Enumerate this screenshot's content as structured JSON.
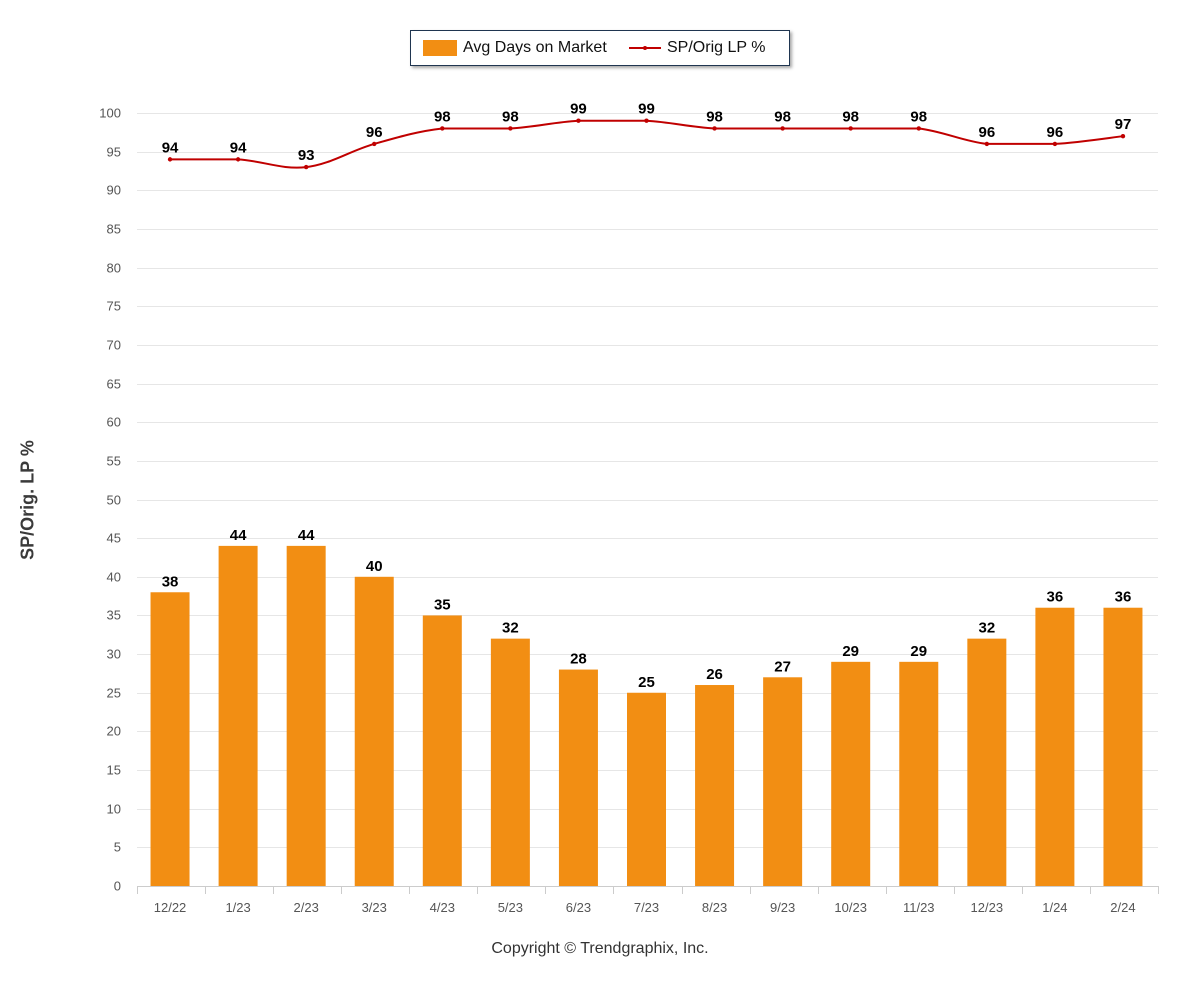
{
  "chart_data": {
    "type": "bar",
    "categories": [
      "12/22",
      "1/23",
      "2/23",
      "3/23",
      "4/23",
      "5/23",
      "6/23",
      "7/23",
      "8/23",
      "9/23",
      "10/23",
      "11/23",
      "12/23",
      "1/24",
      "2/24"
    ],
    "series": [
      {
        "name": "Avg Days on Market",
        "kind": "bar",
        "color": "#f28e13",
        "values": [
          38,
          44,
          44,
          40,
          35,
          32,
          28,
          25,
          26,
          27,
          29,
          29,
          32,
          36,
          36
        ]
      },
      {
        "name": "SP/Orig LP %",
        "kind": "line",
        "color": "#c00000",
        "values": [
          94,
          94,
          93,
          96,
          98,
          98,
          99,
          99,
          98,
          98,
          98,
          98,
          96,
          96,
          97
        ]
      }
    ],
    "ylabel": "SP/Orig. LP %",
    "ylim": [
      0,
      100
    ],
    "yticks": [
      0,
      5,
      10,
      15,
      20,
      25,
      30,
      35,
      40,
      45,
      50,
      55,
      60,
      65,
      70,
      75,
      80,
      85,
      90,
      95,
      100
    ],
    "grid": true,
    "legend_position": "top-center"
  },
  "legend": {
    "bar_label": "Avg Days on Market",
    "line_label": "SP/Orig LP %"
  },
  "footer": {
    "copyright": "Copyright © Trendgraphix, Inc."
  }
}
